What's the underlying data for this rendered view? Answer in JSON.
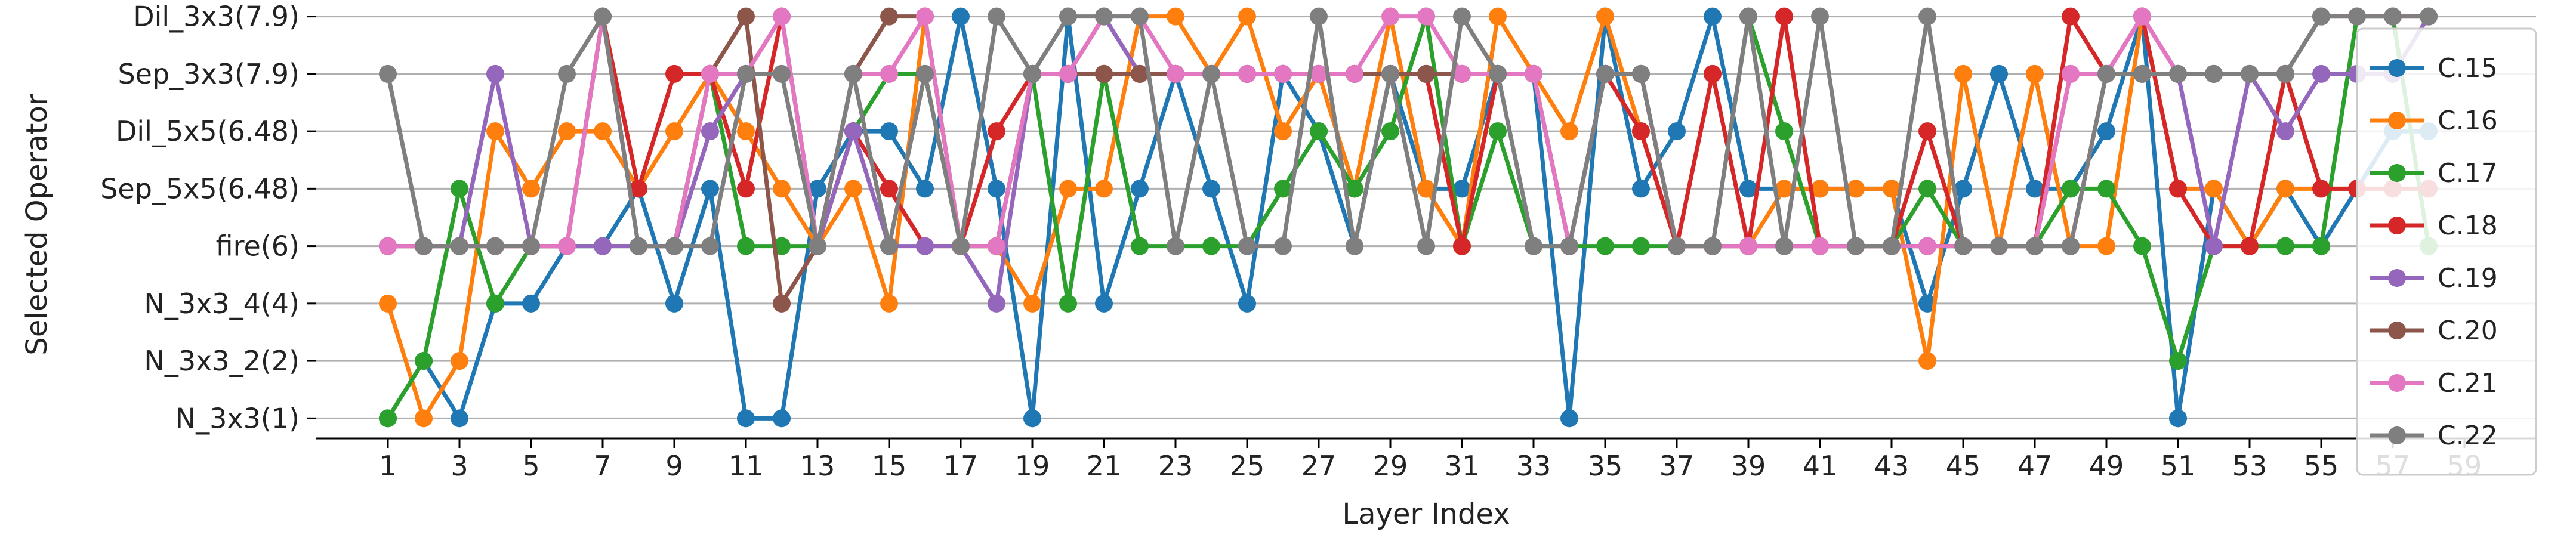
{
  "chart_data": {
    "type": "line",
    "xlabel": "Layer Index",
    "ylabel": "Selected Operator",
    "x": [
      1,
      2,
      3,
      4,
      5,
      6,
      7,
      8,
      9,
      10,
      11,
      12,
      13,
      14,
      15,
      16,
      17,
      18,
      19,
      20,
      21,
      22,
      23,
      24,
      25,
      26,
      27,
      28,
      29,
      30,
      31,
      32,
      33,
      34,
      35,
      36,
      37,
      38,
      39,
      40,
      41,
      42,
      43,
      44,
      45,
      46,
      47,
      48,
      49,
      50,
      51,
      52,
      53,
      54,
      55,
      56,
      57,
      58
    ],
    "xticks": [
      1,
      3,
      5,
      7,
      9,
      11,
      13,
      15,
      17,
      19,
      21,
      23,
      25,
      27,
      29,
      31,
      33,
      35,
      37,
      39,
      41,
      43,
      45,
      47,
      49,
      51,
      53,
      55,
      57,
      59
    ],
    "xlim": [
      -1,
      61
    ],
    "ylim": [
      -0.35,
      7.1
    ],
    "categories": [
      "N_3x3(1)",
      "N_3x3_2(2)",
      "N_3x3_4(4)",
      "fire(6)",
      "Sep_5x5(6.48)",
      "Dil_5x5(6.48)",
      "Sep_3x3(7.9)",
      "Dil_3x3(7.9)"
    ],
    "grid": "horizontal",
    "legend_position": "right",
    "series": [
      {
        "name": "C.15",
        "color": "#1f77b4",
        "values": [
          0,
          1,
          0,
          2,
          2,
          3,
          3,
          4,
          2,
          4,
          0,
          0,
          4,
          5,
          5,
          4,
          7,
          4,
          0,
          7,
          2,
          4,
          6,
          4,
          2,
          6,
          5,
          3,
          6,
          4,
          4,
          6,
          6,
          0,
          7,
          4,
          5,
          7,
          4,
          4,
          4,
          4,
          4,
          2,
          4,
          6,
          4,
          4,
          5,
          7,
          0,
          4,
          3,
          4,
          3,
          4,
          5,
          5
        ]
      },
      {
        "name": "C.16",
        "color": "#ff7f0e",
        "values": [
          2,
          0,
          1,
          5,
          4,
          5,
          5,
          4,
          5,
          6,
          5,
          4,
          3,
          4,
          2,
          7,
          3,
          3,
          2,
          4,
          4,
          7,
          7,
          6,
          7,
          5,
          6,
          4,
          7,
          4,
          3,
          7,
          6,
          5,
          7,
          5,
          3,
          3,
          3,
          4,
          4,
          4,
          4,
          1,
          6,
          3,
          6,
          3,
          3,
          7,
          4,
          4,
          3,
          4,
          4,
          4,
          4,
          4
        ]
      },
      {
        "name": "C.17",
        "color": "#2ca02c",
        "values": [
          0,
          1,
          4,
          2,
          3,
          3,
          3,
          3,
          3,
          6,
          3,
          3,
          3,
          5,
          6,
          6,
          3,
          3,
          6,
          2,
          6,
          3,
          3,
          3,
          3,
          4,
          5,
          4,
          5,
          7,
          3,
          5,
          3,
          3,
          3,
          3,
          3,
          3,
          7,
          5,
          3,
          3,
          3,
          4,
          3,
          3,
          3,
          4,
          4,
          3,
          1,
          3,
          3,
          3,
          3,
          7,
          7,
          3
        ]
      },
      {
        "name": "C.18",
        "color": "#d62728",
        "values": [
          3,
          3,
          3,
          3,
          3,
          3,
          7,
          4,
          6,
          6,
          4,
          7,
          3,
          5,
          4,
          3,
          3,
          5,
          6,
          6,
          6,
          6,
          6,
          6,
          6,
          6,
          6,
          6,
          6,
          6,
          3,
          6,
          6,
          3,
          6,
          5,
          3,
          6,
          3,
          7,
          3,
          3,
          3,
          5,
          3,
          3,
          3,
          7,
          6,
          7,
          4,
          3,
          3,
          6,
          4,
          4,
          4,
          4
        ]
      },
      {
        "name": "C.19",
        "color": "#9467bd",
        "values": [
          3,
          3,
          3,
          6,
          3,
          3,
          3,
          3,
          3,
          5,
          6,
          7,
          3,
          5,
          3,
          3,
          3,
          2,
          6,
          6,
          7,
          6,
          6,
          6,
          6,
          6,
          6,
          6,
          6,
          6,
          6,
          6,
          6,
          3,
          6,
          6,
          3,
          3,
          3,
          3,
          3,
          3,
          3,
          3,
          3,
          3,
          3,
          3,
          6,
          7,
          6,
          3,
          6,
          5,
          6,
          6,
          6,
          7
        ]
      },
      {
        "name": "C.20",
        "color": "#8c564b",
        "values": [
          3,
          3,
          3,
          3,
          3,
          3,
          7,
          3,
          3,
          6,
          7,
          2,
          3,
          6,
          7,
          7,
          3,
          3,
          6,
          6,
          6,
          6,
          6,
          6,
          6,
          6,
          6,
          6,
          6,
          6,
          6,
          6,
          6,
          3,
          6,
          6,
          3,
          3,
          3,
          3,
          3,
          3,
          3,
          3,
          3,
          3,
          3,
          6,
          6,
          6,
          6,
          6,
          6,
          6,
          7,
          7,
          7,
          7
        ]
      },
      {
        "name": "C.21",
        "color": "#e377c2",
        "values": [
          3,
          3,
          3,
          3,
          3,
          3,
          7,
          3,
          3,
          6,
          6,
          7,
          3,
          6,
          6,
          7,
          3,
          3,
          6,
          6,
          7,
          7,
          6,
          6,
          6,
          6,
          6,
          6,
          7,
          7,
          6,
          6,
          6,
          3,
          6,
          6,
          3,
          3,
          3,
          3,
          3,
          3,
          3,
          3,
          3,
          3,
          3,
          6,
          6,
          7,
          6,
          6,
          6,
          6,
          7,
          7,
          7,
          7
        ]
      },
      {
        "name": "C.22",
        "color": "#7f7f7f",
        "values": [
          6,
          3,
          3,
          3,
          3,
          6,
          7,
          3,
          3,
          3,
          6,
          6,
          3,
          6,
          3,
          6,
          3,
          7,
          6,
          7,
          7,
          7,
          3,
          6,
          3,
          3,
          7,
          3,
          6,
          3,
          7,
          6,
          3,
          3,
          6,
          6,
          3,
          3,
          7,
          3,
          7,
          3,
          3,
          7,
          3,
          3,
          3,
          3,
          6,
          6,
          6,
          6,
          6,
          6,
          7,
          7,
          7,
          7
        ]
      }
    ]
  }
}
